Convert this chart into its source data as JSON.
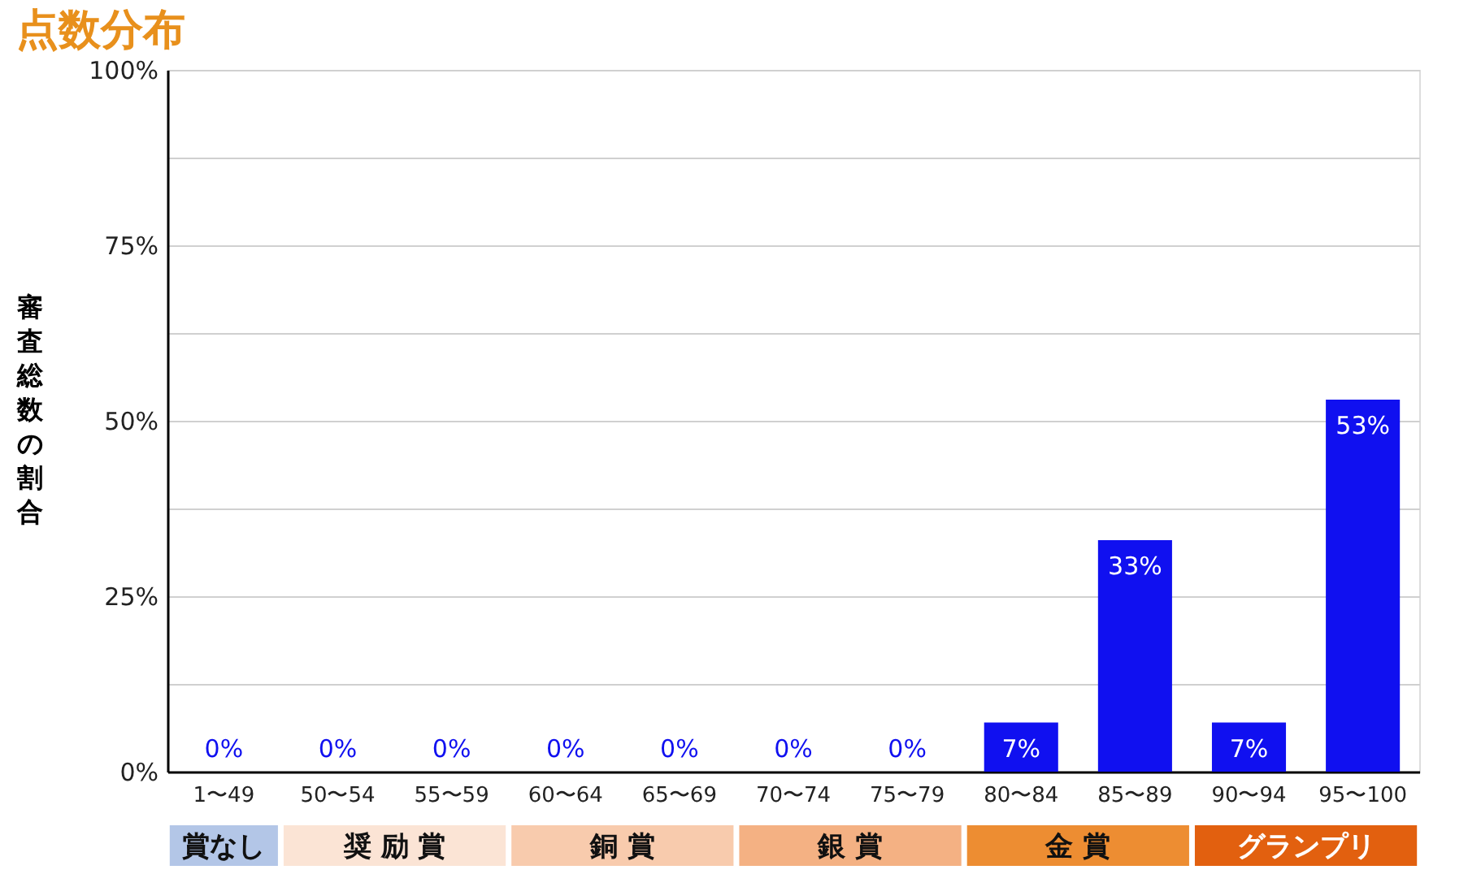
{
  "chart_data": {
    "type": "bar",
    "title": "点数分布",
    "ylabel": "審査総数の割合",
    "categories": [
      "1〜49",
      "50〜54",
      "55〜59",
      "60〜64",
      "65〜69",
      "70〜74",
      "75〜79",
      "80〜84",
      "85〜89",
      "90〜94",
      "95〜100"
    ],
    "values": [
      0,
      0,
      0,
      0,
      0,
      0,
      0,
      7,
      33,
      7,
      53
    ],
    "value_labels": [
      "0%",
      "0%",
      "0%",
      "0%",
      "0%",
      "0%",
      "0%",
      "7%",
      "33%",
      "7%",
      "53%"
    ],
    "color": "#1010f0",
    "ylim": [
      0,
      100
    ],
    "yticks": [
      {
        "value": 0,
        "label": "0%"
      },
      {
        "value": 12.5,
        "label": null
      },
      {
        "value": 25,
        "label": "25%"
      },
      {
        "value": 37.5,
        "label": null
      },
      {
        "value": 50,
        "label": "50%"
      },
      {
        "value": 62.5,
        "label": null
      },
      {
        "value": 75,
        "label": "75%"
      },
      {
        "value": 87.5,
        "label": null
      },
      {
        "value": 100,
        "label": "100%"
      }
    ],
    "grid": "y",
    "annotations": [
      "賞なし",
      "奨 励 賞",
      "銅 賞",
      "銀 賞",
      "金 賞",
      "グランプリ"
    ]
  }
}
